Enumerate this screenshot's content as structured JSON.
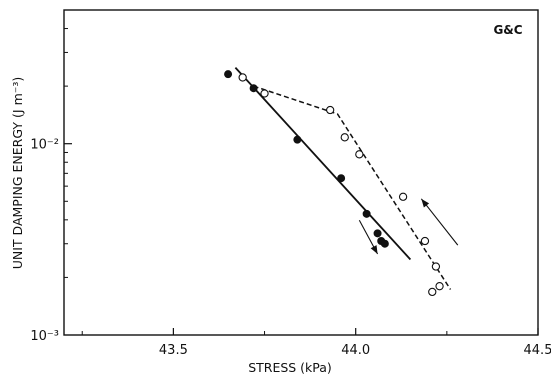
{
  "chart_data": {
    "type": "scatter",
    "xlabel": "STRESS (kPa)",
    "ylabel": "UNIT DAMPING ENERGY (J m⁻³)",
    "annotation": "G&C",
    "x_scale": "linear",
    "y_scale": "log",
    "xlim": [
      43.2,
      44.5
    ],
    "ylim": [
      0.001,
      0.05
    ],
    "x_ticks": [
      43.5,
      44.0,
      44.5
    ],
    "x_tick_labels": [
      "43.5",
      "44.0",
      "44.5"
    ],
    "y_ticks": [
      0.001,
      0.01
    ],
    "y_tick_labels": [
      "10⁻³",
      "10⁻²"
    ],
    "grid": false,
    "series": [
      {
        "marker": "filled-circle",
        "line_style": "solid",
        "points": [
          {
            "x": 43.65,
            "y": 0.0231
          },
          {
            "x": 43.72,
            "y": 0.0195
          },
          {
            "x": 43.84,
            "y": 0.0105
          },
          {
            "x": 43.96,
            "y": 0.0066
          },
          {
            "x": 44.03,
            "y": 0.0043
          },
          {
            "x": 44.06,
            "y": 0.0034
          },
          {
            "x": 44.07,
            "y": 0.0031
          },
          {
            "x": 44.08,
            "y": 0.003
          }
        ],
        "fit_line": [
          {
            "x": 43.67,
            "y": 0.025
          },
          {
            "x": 44.15,
            "y": 0.00248
          }
        ]
      },
      {
        "marker": "open-circle",
        "line_style": "dashed",
        "points": [
          {
            "x": 43.69,
            "y": 0.0222
          },
          {
            "x": 43.75,
            "y": 0.0183
          },
          {
            "x": 43.93,
            "y": 0.015
          },
          {
            "x": 43.97,
            "y": 0.0108
          },
          {
            "x": 44.01,
            "y": 0.0088
          },
          {
            "x": 44.13,
            "y": 0.00528
          },
          {
            "x": 44.19,
            "y": 0.0031
          },
          {
            "x": 44.22,
            "y": 0.00228
          },
          {
            "x": 44.21,
            "y": 0.00168
          },
          {
            "x": 44.23,
            "y": 0.0018
          }
        ],
        "fit_line": [
          {
            "x": 43.72,
            "y": 0.02
          },
          {
            "x": 43.95,
            "y": 0.0143
          },
          {
            "x": 44.26,
            "y": 0.00173
          }
        ]
      }
    ],
    "arrows": [
      {
        "from": {
          "x": 44.01,
          "y": 0.00398
        },
        "to": {
          "x": 44.06,
          "y": 0.00265
        },
        "direction": "down"
      },
      {
        "from": {
          "x": 44.28,
          "y": 0.00295
        },
        "to": {
          "x": 44.18,
          "y": 0.00515
        },
        "direction": "up"
      }
    ],
    "legend": "none"
  }
}
